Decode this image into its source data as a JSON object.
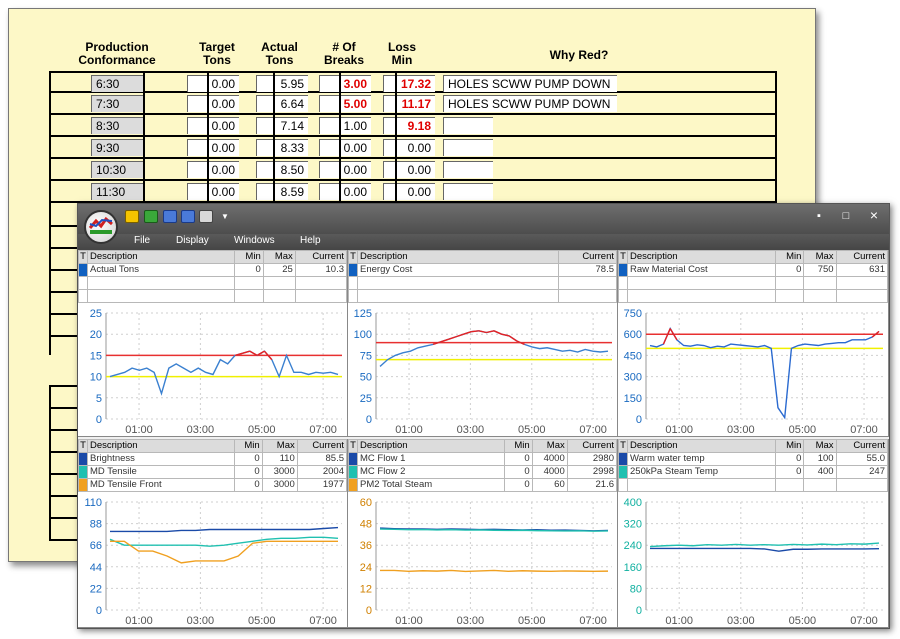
{
  "sheet": {
    "headers": {
      "production": "Production\nConformance",
      "target": "Target\nTons",
      "actual": "Actual\nTons",
      "breaks": "# Of\nBreaks",
      "loss": "Loss\nMin",
      "why": "Why Red?"
    },
    "rows": [
      {
        "time": "6:30",
        "target": "0.00",
        "actual": "5.95",
        "breaks": "3.00",
        "loss": "17.32",
        "why": "HOLES SCWW PUMP DOWN",
        "breaks_red": true,
        "loss_red": true
      },
      {
        "time": "7:30",
        "target": "0.00",
        "actual": "6.64",
        "breaks": "5.00",
        "loss": "11.17",
        "why": "HOLES SCWW PUMP DOWN",
        "breaks_red": true,
        "loss_red": true
      },
      {
        "time": "8:30",
        "target": "0.00",
        "actual": "7.14",
        "breaks": "1.00",
        "loss": "9.18",
        "why": "",
        "breaks_red": false,
        "loss_red": true
      },
      {
        "time": "9:30",
        "target": "0.00",
        "actual": "8.33",
        "breaks": "0.00",
        "loss": "0.00",
        "why": "",
        "breaks_red": false,
        "loss_red": false
      },
      {
        "time": "10:30",
        "target": "0.00",
        "actual": "8.50",
        "breaks": "0.00",
        "loss": "0.00",
        "why": "",
        "breaks_red": false,
        "loss_red": false
      },
      {
        "time": "11:30",
        "target": "0.00",
        "actual": "8.59",
        "breaks": "0.00",
        "loss": "0.00",
        "why": "",
        "breaks_red": false,
        "loss_red": false
      }
    ]
  },
  "window": {
    "menu": [
      "File",
      "Display",
      "Windows",
      "Help"
    ],
    "controls": {
      "minimize": "▪",
      "maximize": "□",
      "close": "×"
    },
    "toolbar_icons": [
      "open-icon",
      "add-icon",
      "save-icon",
      "save-as-icon",
      "print-icon",
      "dropdown-icon"
    ]
  },
  "table_headers": {
    "t": "T",
    "desc": "Description",
    "min": "Min",
    "max": "Max",
    "current": "Current"
  },
  "panels": [
    {
      "rows": [
        {
          "desc": "Actual Tons",
          "min": "0",
          "max": "25",
          "current": "10.3",
          "color": "#1060c0"
        }
      ],
      "show_minmax": true
    },
    {
      "rows": [
        {
          "desc": "Energy Cost",
          "current": "78.5",
          "color": "#1060c0"
        }
      ],
      "show_minmax": false
    },
    {
      "rows": [
        {
          "desc": "Raw Material Cost",
          "min": "0",
          "max": "750",
          "current": "631",
          "color": "#1060c0"
        }
      ],
      "show_minmax": true
    },
    {
      "rows": [
        {
          "desc": "Brightness",
          "min": "0",
          "max": "110",
          "current": "85.5",
          "color": "#1a4aa8"
        },
        {
          "desc": "MD Tensile",
          "min": "0",
          "max": "3000",
          "current": "2004",
          "color": "#20c0b0"
        },
        {
          "desc": "MD Tensile Front",
          "min": "0",
          "max": "3000",
          "current": "1977",
          "color": "#f0a020"
        }
      ],
      "show_minmax": true
    },
    {
      "rows": [
        {
          "desc": "MC Flow 1",
          "min": "0",
          "max": "4000",
          "current": "2980",
          "color": "#1a4aa8"
        },
        {
          "desc": "MC Flow 2",
          "min": "0",
          "max": "4000",
          "current": "2998",
          "color": "#20c0b0"
        },
        {
          "desc": "PM2 Total Steam",
          "min": "0",
          "max": "60",
          "current": "21.6",
          "color": "#f0a020"
        }
      ],
      "show_minmax": true
    },
    {
      "rows": [
        {
          "desc": "Warm water temp",
          "min": "0",
          "max": "100",
          "current": "55.0",
          "color": "#1a4aa8"
        },
        {
          "desc": "250kPa Steam Temp",
          "min": "0",
          "max": "400",
          "current": "247",
          "color": "#20c0b0"
        }
      ],
      "show_minmax": true
    }
  ],
  "chart_data": [
    {
      "type": "line",
      "yticks": [
        "25",
        "20",
        "15",
        "10",
        "5",
        "0"
      ],
      "ylim": [
        0,
        25
      ],
      "xticks": [
        "01:00",
        "03:00",
        "05:00",
        "07:00"
      ],
      "tick_color": "#1a6ac0",
      "limits": [
        {
          "value": 15,
          "color": "#e83030"
        },
        {
          "value": 10,
          "color": "#f0f000"
        }
      ],
      "series": [
        {
          "color": "#3a80d0",
          "values": [
            10,
            10.5,
            11,
            12,
            11.5,
            12,
            11,
            6,
            12,
            13,
            12,
            11,
            12,
            11,
            10.5,
            14,
            13,
            15,
            15.5,
            16,
            15,
            16,
            14,
            10,
            15,
            11,
            11,
            10.5,
            11,
            10.8,
            11,
            10.5
          ]
        }
      ]
    },
    {
      "type": "line",
      "yticks": [
        "125",
        "100",
        "75",
        "50",
        "25",
        "0"
      ],
      "ylim": [
        0,
        125
      ],
      "xticks": [
        "01:00",
        "03:00",
        "05:00",
        "07:00"
      ],
      "tick_color": "#1a6ac0",
      "limits": [
        {
          "value": 90,
          "color": "#e83030"
        },
        {
          "value": 70,
          "color": "#f0f000"
        }
      ],
      "series": [
        {
          "color": "#3a80d0",
          "values": [
            62,
            70,
            75,
            78,
            80,
            84,
            86,
            88,
            91,
            94,
            97,
            100,
            103,
            104,
            102,
            104,
            100,
            98,
            92,
            88,
            85,
            83,
            84,
            82,
            80,
            81,
            79,
            82,
            80,
            79,
            80
          ]
        }
      ]
    },
    {
      "type": "line",
      "yticks": [
        "750",
        "600",
        "450",
        "300",
        "150",
        "0"
      ],
      "ylim": [
        0,
        750
      ],
      "xticks": [
        "01:00",
        "03:00",
        "05:00",
        "07:00"
      ],
      "tick_color": "#1a6ac0",
      "limits": [
        {
          "value": 600,
          "color": "#e83030"
        },
        {
          "value": 500,
          "color": "#f0f000"
        }
      ],
      "series": [
        {
          "color": "#2a6ad0",
          "values": [
            520,
            510,
            530,
            640,
            560,
            520,
            515,
            525,
            520,
            505,
            515,
            510,
            530,
            525,
            520,
            515,
            510,
            520,
            500,
            80,
            10,
            500,
            520,
            530,
            525,
            520,
            530,
            535,
            540,
            540,
            560,
            560,
            560,
            580,
            620
          ]
        }
      ]
    },
    {
      "type": "line",
      "yticks": [
        "110",
        "88",
        "66",
        "44",
        "22",
        "0"
      ],
      "ylim": [
        0,
        110
      ],
      "xticks": [
        "01:00",
        "03:00",
        "05:00",
        "07:00"
      ],
      "tick_color": "#1a6ac0",
      "series": [
        {
          "color": "#1a4aa8",
          "values": [
            80,
            80,
            80,
            80,
            80,
            81,
            81,
            82,
            82,
            82,
            82,
            82,
            82,
            82,
            82,
            83,
            84
          ]
        },
        {
          "color": "#20c0b0",
          "values": [
            72,
            66,
            66,
            66,
            66,
            66,
            66,
            65,
            66,
            68,
            70,
            72,
            73,
            73,
            74,
            74,
            73
          ]
        },
        {
          "color": "#f0a020",
          "values": [
            70,
            70,
            60,
            60,
            55,
            48,
            50,
            50,
            50,
            55,
            68,
            70,
            70,
            70,
            70,
            70,
            70
          ]
        }
      ]
    },
    {
      "type": "line",
      "yticks": [
        "60",
        "48",
        "36",
        "24",
        "12",
        "0"
      ],
      "ylim": [
        0,
        60
      ],
      "xticks": [
        "01:00",
        "03:00",
        "05:00",
        "07:00"
      ],
      "tick_color": "#d08000",
      "series": [
        {
          "color": "#1a4aa8",
          "values": [
            45.5,
            45.2,
            45,
            45,
            44.8,
            45,
            44.9,
            44.7,
            44.8,
            44.6,
            44.5,
            44.6,
            44.3,
            44.4,
            44.2,
            44.0,
            44.2
          ]
        },
        {
          "color": "#20c0b0",
          "values": [
            45,
            44.8,
            44.6,
            44.7,
            44.5,
            44.6,
            44.4,
            44.5,
            44.3,
            44.2,
            44.3,
            44.1,
            44.0,
            43.9,
            44.0,
            43.8,
            43.9
          ]
        },
        {
          "color": "#f0a020",
          "values": [
            22,
            22,
            21.5,
            21.8,
            21.6,
            22,
            21.4,
            21.7,
            22,
            21.5,
            21.8,
            21.6,
            21.5,
            21.7,
            21.6,
            21.5,
            21.6
          ]
        }
      ]
    },
    {
      "type": "line",
      "yticks": [
        "400",
        "320",
        "240",
        "160",
        "80",
        "0"
      ],
      "ylim": [
        0,
        400
      ],
      "xticks": [
        "01:00",
        "03:00",
        "05:00",
        "07:00"
      ],
      "tick_color": "#10b0a0",
      "series": [
        {
          "color": "#1a4aa8",
          "values": [
            228,
            228,
            228,
            228,
            228,
            228,
            228,
            228,
            226,
            218,
            225,
            225,
            226,
            226,
            226,
            226,
            227
          ]
        },
        {
          "color": "#20c0b0",
          "values": [
            235,
            238,
            240,
            238,
            242,
            240,
            243,
            240,
            242,
            240,
            243,
            241,
            244,
            242,
            245,
            244,
            248
          ]
        }
      ]
    }
  ]
}
